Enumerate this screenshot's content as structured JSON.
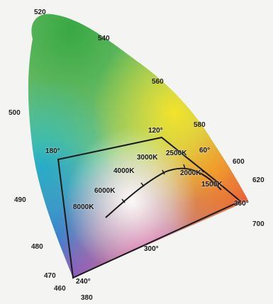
{
  "wavelength_labels": [
    "520",
    "540",
    "560",
    "580",
    "600",
    "620",
    "700",
    "500",
    "490",
    "480",
    "470",
    "460",
    "380"
  ],
  "hue_angle_labels": [
    "120°",
    "180°",
    "60°",
    "360°",
    "300°",
    "240°"
  ],
  "cct_labels": [
    "8000K",
    "6000K",
    "4000K",
    "3000K",
    "2500K",
    "2000K",
    "1500K"
  ],
  "colors": {
    "green": "#3bb24a",
    "yellow": "#f2e22b",
    "orange": "#f28a2a",
    "red": "#e8403a",
    "magenta": "#d2479e",
    "blue": "#2a7fd6",
    "cyan": "#22b7c9",
    "violet": "#7a5cc8",
    "white_point": "#ffffff",
    "outline": "#1a1a1a",
    "background": "#f4f4f2"
  }
}
